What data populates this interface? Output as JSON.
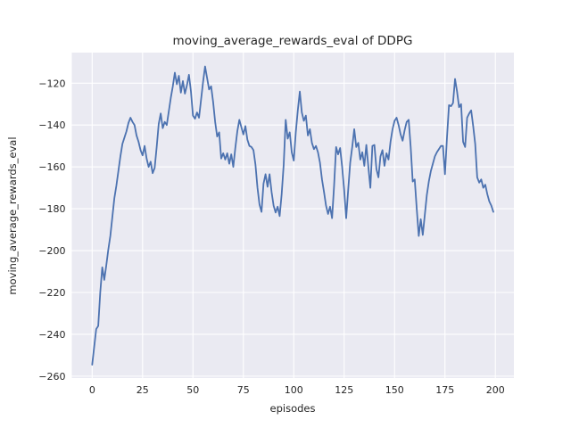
{
  "chart_data": {
    "type": "line",
    "title": "moving_average_rewards_eval of DDPG",
    "xlabel": "episodes",
    "ylabel": "moving_average_rewards_eval",
    "legend": null,
    "grid": true,
    "xticks": [
      0,
      25,
      50,
      75,
      100,
      125,
      150,
      175,
      200
    ],
    "yticks": [
      -120,
      -140,
      -160,
      -180,
      -200,
      -220,
      -240,
      -260
    ],
    "xlim": [
      -10.1,
      209.2
    ],
    "ylim": [
      -260.9,
      -105.4
    ],
    "style": {
      "plot_bg": "#eaeaf2",
      "grid_color": "#ffffff",
      "line_color": "#4c72b0",
      "text_color": "#262626",
      "fig_bg": "#ffffff",
      "line_width": 1.8
    },
    "series": [
      {
        "name": "moving_average_rewards_eval",
        "x_start": 0,
        "x_step": 1,
        "values": [
          -254.5,
          -246,
          -237.5,
          -236,
          -220,
          -208,
          -214,
          -207,
          -199.5,
          -193,
          -184,
          -175,
          -169,
          -162,
          -155,
          -149,
          -146,
          -143,
          -139,
          -136.5,
          -138.5,
          -140,
          -145,
          -148,
          -152,
          -154.5,
          -150,
          -156,
          -160,
          -157.5,
          -163,
          -160.5,
          -150.5,
          -139.5,
          -134.5,
          -141.5,
          -138.5,
          -140,
          -133.5,
          -127,
          -121.5,
          -115,
          -120.5,
          -116.5,
          -124.5,
          -119,
          -125,
          -121,
          -116,
          -124,
          -135.5,
          -137,
          -134,
          -136.5,
          -128,
          -119.5,
          -112,
          -117.5,
          -123,
          -121.5,
          -129,
          -138.5,
          -145.5,
          -143.5,
          -156,
          -153.5,
          -156.5,
          -153.5,
          -158.5,
          -154,
          -160,
          -151,
          -143,
          -137.5,
          -141,
          -144.5,
          -140.5,
          -147,
          -150,
          -150.5,
          -152,
          -159,
          -170,
          -178,
          -181.5,
          -168,
          -163.5,
          -169.5,
          -163.5,
          -172,
          -178.5,
          -181.8,
          -179,
          -183.5,
          -173,
          -159,
          -137.5,
          -146.5,
          -143.5,
          -153,
          -157,
          -143.5,
          -133,
          -124,
          -134,
          -138,
          -135.5,
          -145,
          -142,
          -148.5,
          -151.5,
          -150,
          -153,
          -158,
          -166,
          -172,
          -178.5,
          -182.5,
          -179,
          -184.5,
          -169,
          -150.5,
          -154,
          -151,
          -160,
          -171,
          -184.5,
          -171,
          -158,
          -150.5,
          -142,
          -150.5,
          -148.5,
          -156.5,
          -153,
          -159.5,
          -149.5,
          -160,
          -170,
          -150,
          -149.5,
          -161,
          -165,
          -155,
          -152,
          -159.5,
          -153.5,
          -156.5,
          -148,
          -142,
          -138,
          -136.5,
          -140,
          -144.5,
          -147.5,
          -142.5,
          -138.5,
          -137.5,
          -150.5,
          -167,
          -166,
          -180,
          -193,
          -185,
          -192.5,
          -183,
          -173.5,
          -167,
          -162,
          -158.5,
          -155,
          -153,
          -151.5,
          -150,
          -150,
          -163.5,
          -146,
          -130.5,
          -131,
          -129.5,
          -118,
          -124,
          -131.5,
          -130,
          -148,
          -150.5,
          -136.5,
          -134.5,
          -133,
          -140.5,
          -149,
          -165,
          -167.5,
          -166,
          -170,
          -168.5,
          -173,
          -176.5,
          -178.5,
          -181.5
        ]
      }
    ]
  }
}
